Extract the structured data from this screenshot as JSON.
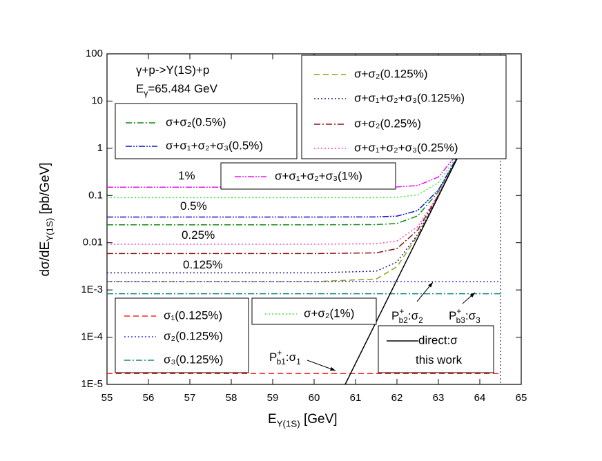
{
  "chart_data": {
    "type": "line",
    "x_label": [
      "E",
      "Y(1S)",
      " [GeV]"
    ],
    "y_label": [
      "dσ/dE",
      "Y(1S)",
      " [pb/GeV]"
    ],
    "xlim": [
      55,
      65
    ],
    "ylim": [
      1e-05,
      100
    ],
    "ylog": true,
    "grid": false,
    "xticks": [
      55,
      56,
      57,
      58,
      59,
      60,
      61,
      62,
      63,
      64,
      65
    ],
    "yticks": [
      {
        "value": 1e-05,
        "label": "1E-5"
      },
      {
        "value": 0.0001,
        "label": "1E-4"
      },
      {
        "value": 0.001,
        "label": "1E-3"
      },
      0.01,
      0.1,
      1,
      10,
      100
    ],
    "vlines": [
      64.5
    ],
    "series": [
      {
        "name": "σ+σ₂(0.125%)",
        "color": "#9a9a10",
        "linestyle": "dashed",
        "x": [
          55,
          60,
          61.5,
          62,
          62.5,
          63,
          63.45
        ],
        "values": [
          0.0015,
          0.0015,
          0.0017,
          0.0031,
          0.0141,
          0.098,
          0.602
        ]
      },
      {
        "name": "σ+σ₁+σ₂+σ₃(0.125%)",
        "color": "#1a1a9a",
        "linestyle": "dotted",
        "x": [
          55,
          60,
          61.5,
          62,
          62.5,
          63,
          63.45
        ],
        "values": [
          0.0023,
          0.0023,
          0.0025,
          0.0039,
          0.0149,
          0.098,
          0.602
        ]
      },
      {
        "name": "σ+σ₂(0.25%)",
        "color": "#8b1010",
        "linestyle": "dashdot",
        "x": [
          55,
          60,
          61.5,
          62,
          62.5,
          63,
          63.45
        ],
        "values": [
          0.0059,
          0.0059,
          0.0061,
          0.0075,
          0.0185,
          0.102,
          0.606
        ]
      },
      {
        "name": "σ+σ₁+σ₂+σ₃(0.25%)",
        "color": "#ff40c8",
        "linestyle": "dotted",
        "x": [
          55,
          60,
          61.5,
          62,
          62.5,
          63,
          63.45
        ],
        "values": [
          0.0093,
          0.0093,
          0.0095,
          0.0109,
          0.0219,
          0.105,
          0.61
        ]
      },
      {
        "name": "σ+σ₂(0.5%)",
        "color": "#108a10",
        "linestyle": "dashdot",
        "x": [
          55,
          60,
          61.5,
          62,
          62.5,
          63,
          63.45
        ],
        "values": [
          0.024,
          0.024,
          0.0242,
          0.0256,
          0.037,
          0.12,
          0.624
        ]
      },
      {
        "name": "σ+σ₁+σ₂+σ₃(0.5%)",
        "color": "#1010c8",
        "linestyle": "dashdotdot",
        "x": [
          55,
          60,
          61.5,
          62,
          62.5,
          63,
          63.45
        ],
        "values": [
          0.035,
          0.035,
          0.0352,
          0.0366,
          0.048,
          0.131,
          0.635
        ]
      },
      {
        "name": "σ+σ₁+σ₂+σ₃(1%)",
        "color": "#ee10ee",
        "linestyle": "dashdotdot",
        "x": [
          55,
          60,
          61.5,
          62,
          62.5,
          63,
          63.45
        ],
        "values": [
          0.15,
          0.15,
          0.1502,
          0.1516,
          0.163,
          0.246,
          0.75
        ]
      },
      {
        "name": "σ+σ₂(1%)",
        "color": "#30ee30",
        "linestyle": "dotted",
        "x": [
          55,
          60,
          61.5,
          62,
          62.5,
          63,
          63.45
        ],
        "values": [
          0.09,
          0.09,
          0.0902,
          0.0916,
          0.103,
          0.186,
          0.69
        ]
      },
      {
        "name": "σ₁(0.125%)",
        "color": "#ff2020",
        "linestyle": "dashed",
        "x": [
          55,
          64.5
        ],
        "values": [
          1.7e-05,
          1.7e-05
        ]
      },
      {
        "name": "σ₂(0.125%)",
        "color": "#3030ff",
        "linestyle": "dotted",
        "x": [
          55,
          64.5
        ],
        "values": [
          0.0015,
          0.0015
        ]
      },
      {
        "name": "σ₃(0.125%)",
        "color": "#108888",
        "linestyle": "dashdot",
        "x": [
          55,
          64.5
        ],
        "values": [
          0.00083,
          0.00083
        ]
      },
      {
        "name": "direct:σ",
        "color": "#000000",
        "linestyle": "solid",
        "x": [
          60.75,
          63.45
        ],
        "values": [
          1e-05,
          0.6
        ]
      }
    ],
    "annotations": [
      [
        "γ+p->Y(1S)+p"
      ],
      [
        "E",
        "γ",
        "=65.484 GeV"
      ],
      [
        "1%"
      ],
      [
        "0.5%"
      ],
      [
        "0.25%"
      ],
      [
        "0.125%"
      ],
      [
        "P",
        "+",
        "b1",
        ":σ",
        "1"
      ],
      [
        "P",
        "+",
        "b2",
        ":σ",
        "2"
      ],
      [
        "P",
        "+",
        "b3",
        ":σ",
        "3"
      ],
      [
        "this work"
      ]
    ]
  }
}
